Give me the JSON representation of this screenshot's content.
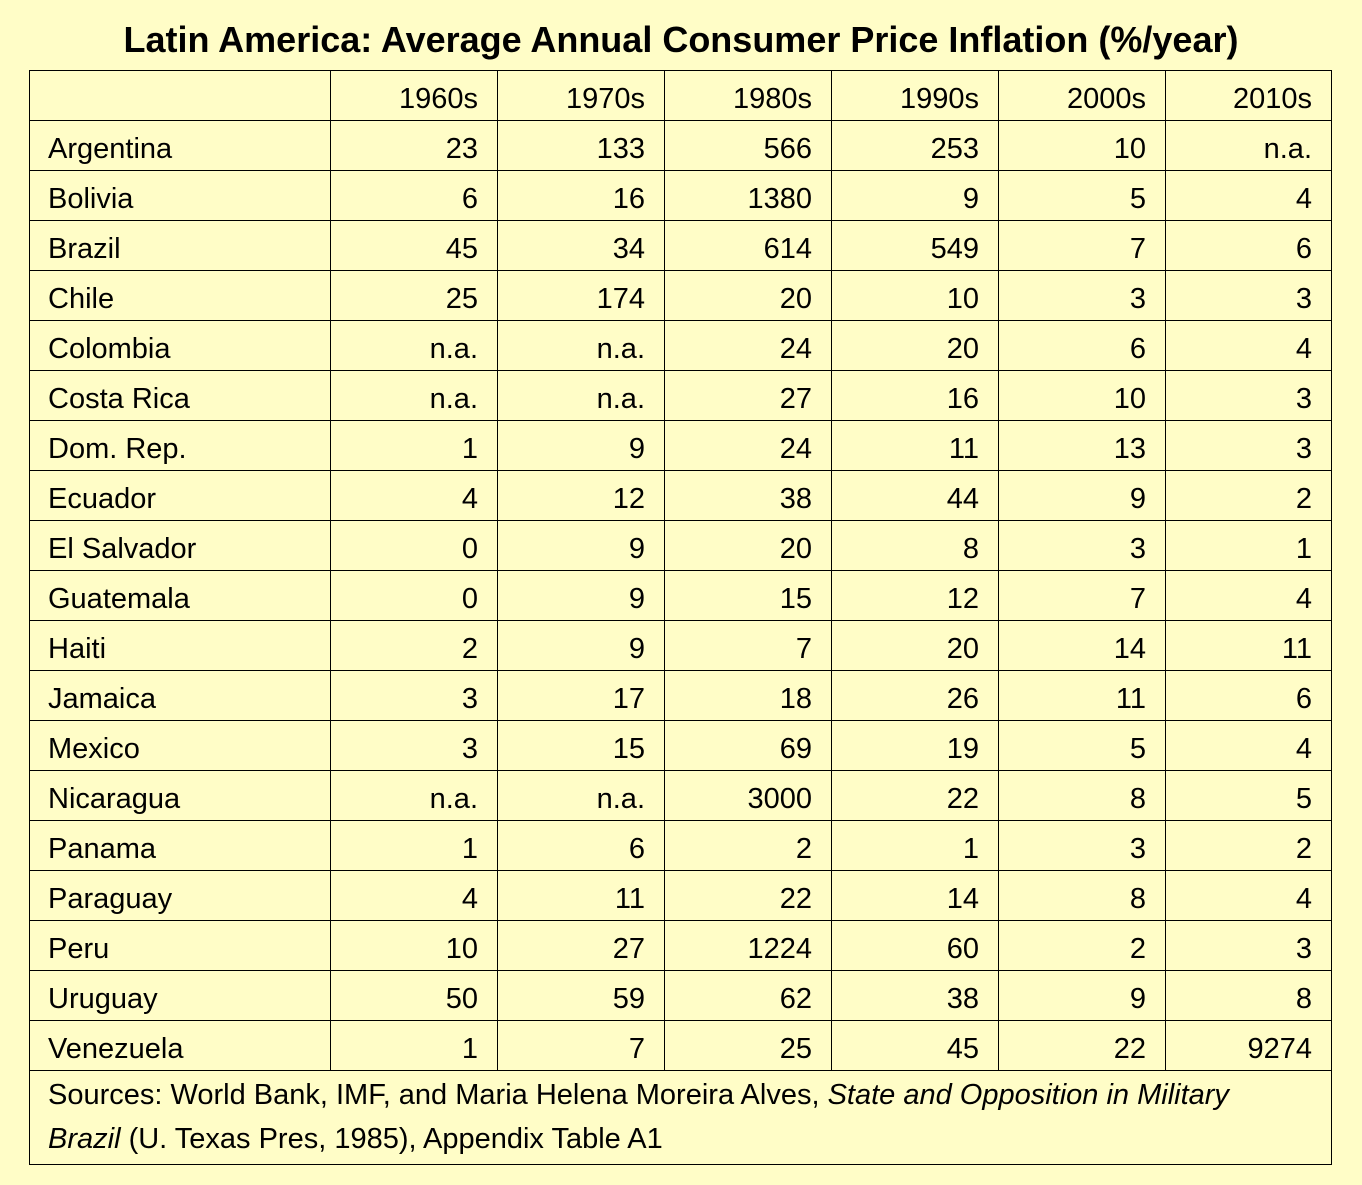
{
  "title": "Latin America: Average Annual Consumer Price Inflation (%/year)",
  "columns": [
    "",
    "1960s",
    "1970s",
    "1980s",
    "1990s",
    "2000s",
    "2010s"
  ],
  "rows": [
    {
      "country": "Argentina",
      "values": [
        "23",
        "133",
        "566",
        "253",
        "10",
        "n.a."
      ]
    },
    {
      "country": "Bolivia",
      "values": [
        "6",
        "16",
        "1380",
        "9",
        "5",
        "4"
      ]
    },
    {
      "country": "Brazil",
      "values": [
        "45",
        "34",
        "614",
        "549",
        "7",
        "6"
      ]
    },
    {
      "country": "Chile",
      "values": [
        "25",
        "174",
        "20",
        "10",
        "3",
        "3"
      ]
    },
    {
      "country": "Colombia",
      "values": [
        "n.a.",
        "n.a.",
        "24",
        "20",
        "6",
        "4"
      ]
    },
    {
      "country": "Costa Rica",
      "values": [
        "n.a.",
        "n.a.",
        "27",
        "16",
        "10",
        "3"
      ]
    },
    {
      "country": "Dom. Rep.",
      "values": [
        "1",
        "9",
        "24",
        "11",
        "13",
        "3"
      ]
    },
    {
      "country": "Ecuador",
      "values": [
        "4",
        "12",
        "38",
        "44",
        "9",
        "2"
      ]
    },
    {
      "country": "El Salvador",
      "values": [
        "0",
        "9",
        "20",
        "8",
        "3",
        "1"
      ]
    },
    {
      "country": "Guatemala",
      "values": [
        "0",
        "9",
        "15",
        "12",
        "7",
        "4"
      ]
    },
    {
      "country": "Haiti",
      "values": [
        "2",
        "9",
        "7",
        "20",
        "14",
        "11"
      ]
    },
    {
      "country": "Jamaica",
      "values": [
        "3",
        "17",
        "18",
        "26",
        "11",
        "6"
      ]
    },
    {
      "country": "Mexico",
      "values": [
        "3",
        "15",
        "69",
        "19",
        "5",
        "4"
      ]
    },
    {
      "country": "Nicaragua",
      "values": [
        "n.a.",
        "n.a.",
        "3000",
        "22",
        "8",
        "5"
      ]
    },
    {
      "country": "Panama",
      "values": [
        "1",
        "6",
        "2",
        "1",
        "3",
        "2"
      ]
    },
    {
      "country": "Paraguay",
      "values": [
        "4",
        "11",
        "22",
        "14",
        "8",
        "4"
      ]
    },
    {
      "country": "Peru",
      "values": [
        "10",
        "27",
        "1224",
        "60",
        "2",
        "3"
      ]
    },
    {
      "country": "Uruguay",
      "values": [
        "50",
        "59",
        "62",
        "38",
        "9",
        "8"
      ]
    },
    {
      "country": "Venezuela",
      "values": [
        "1",
        "7",
        "25",
        "45",
        "22",
        "9274"
      ]
    }
  ],
  "sources": {
    "prefix": "Sources: World Bank, IMF, and Maria Helena Moreira Alves, ",
    "book_title": "State and Opposition in Military Brazil",
    "suffix": " (U. Texas Pres, 1985), Appendix Table A1"
  },
  "colors": {
    "background": "#fffdc7",
    "grid": "#000000"
  }
}
